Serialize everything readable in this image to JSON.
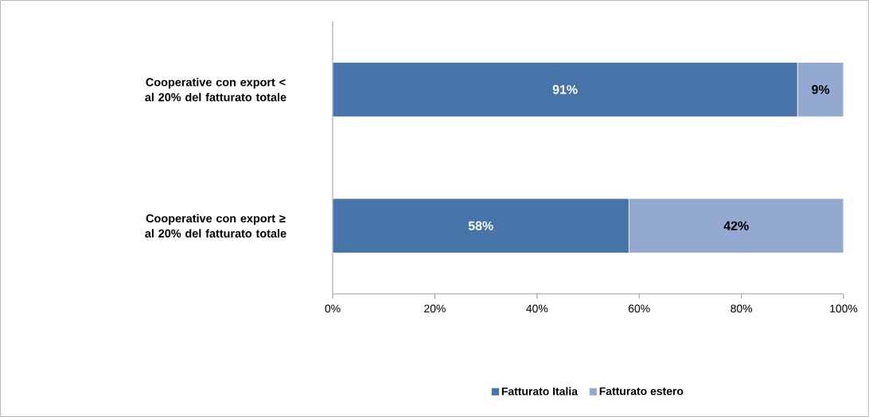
{
  "chart_data": {
    "type": "bar",
    "orientation": "horizontal",
    "stacked": true,
    "categories": [
      "Cooperative con export < al 20% del fatturato totale",
      "Cooperative con export ≥ al 20% del fatturato totale"
    ],
    "series": [
      {
        "name": "Fatturato Italia",
        "color": "#4674a8",
        "values": [
          91,
          58
        ],
        "value_labels": [
          "91%",
          "58%"
        ]
      },
      {
        "name": "Fatturato estero",
        "color": "#94a9d0",
        "values": [
          9,
          42
        ],
        "value_labels": [
          "9%",
          "42%"
        ]
      }
    ],
    "xlim": [
      0,
      100
    ],
    "xticks": [
      {
        "value": 0,
        "label": "0%"
      },
      {
        "value": 20,
        "label": "20%"
      },
      {
        "value": 40,
        "label": "40%"
      },
      {
        "value": 60,
        "label": "60%"
      },
      {
        "value": 80,
        "label": "80%"
      },
      {
        "value": 100,
        "label": "100%"
      }
    ],
    "legend": "bottom",
    "grid": false
  }
}
